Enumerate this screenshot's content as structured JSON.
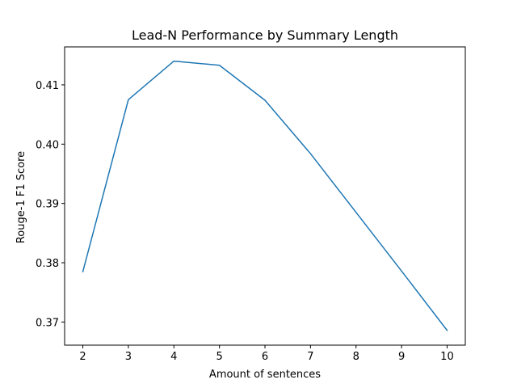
{
  "chart_data": {
    "type": "line",
    "title": "Lead-N Performance by Summary Length",
    "xlabel": "Amount of sentences",
    "ylabel": "Rouge-1 F1 Score",
    "x": [
      2,
      3,
      4,
      5,
      6,
      7,
      8,
      9,
      10
    ],
    "series": [
      {
        "values": [
          0.3785,
          0.4075,
          0.414,
          0.4133,
          0.4074,
          0.3984,
          0.3885,
          0.3786,
          0.3686
        ]
      }
    ],
    "xlim": [
      1.6,
      10.4
    ],
    "ylim": [
      0.3661,
      0.4164
    ],
    "xticks": [
      2,
      3,
      4,
      5,
      6,
      7,
      8,
      9,
      10
    ],
    "yticks": [
      0.37,
      0.38,
      0.39,
      0.4,
      0.41
    ],
    "ytick_labels": [
      "0.37",
      "0.38",
      "0.39",
      "0.40",
      "0.41"
    ],
    "grid": false,
    "legend": false,
    "line_color": "#1f77b4"
  }
}
